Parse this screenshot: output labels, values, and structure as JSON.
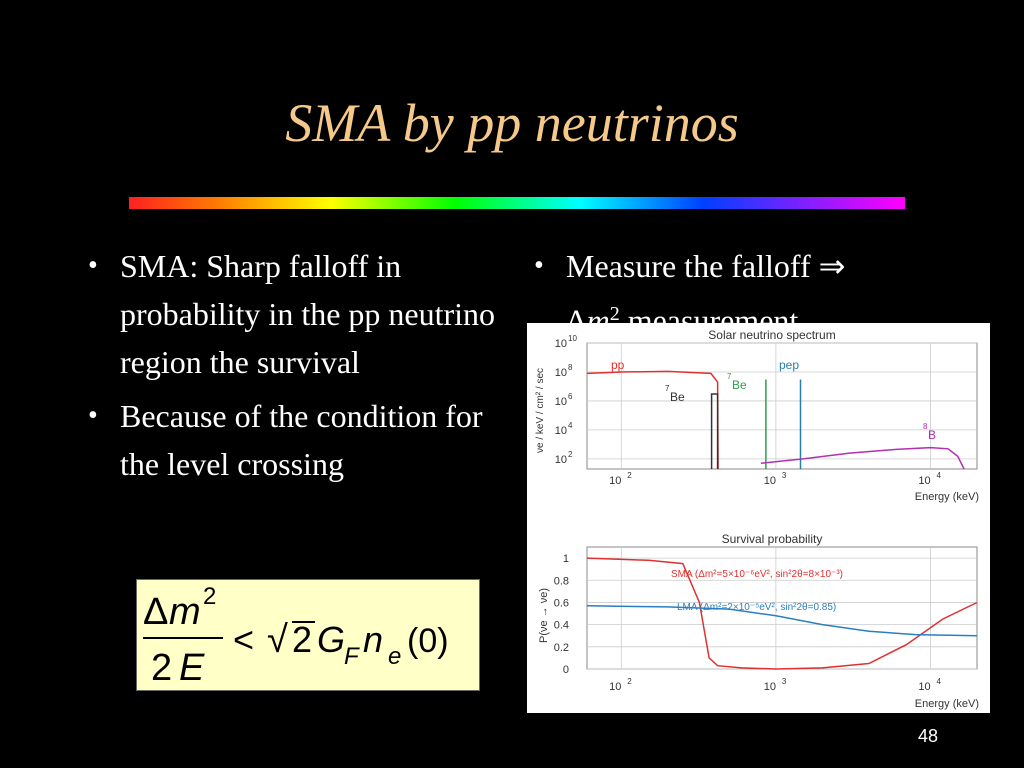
{
  "slide": {
    "title": "SMA by pp neutrinos",
    "page_number": "48",
    "left_bullets": [
      "SMA: Sharp falloff in probability in the pp neutrino region the survival",
      "Because of the condition for the level crossing"
    ],
    "right_bullet": {
      "line1": "Measure the falloff ⇒",
      "delta": "Δ",
      "m": "m",
      "sup": "2",
      "rest": " measurement"
    },
    "formula": {
      "num_delta": "Δ",
      "num_m": "m",
      "num_sup": "2",
      "den": "2",
      "den_E": "E",
      "lt": "<",
      "sqrt": "√",
      "two": "2",
      "G": "G",
      "F": "F",
      "n": "n",
      "e": "e",
      "arg": "(0)"
    }
  },
  "chart_data": [
    {
      "type": "line",
      "title": "Solar neutrino spectrum",
      "xlabel": "Energy (keV)",
      "ylabel": "νe / keV / cm² / sec",
      "xscale": "log",
      "yscale": "log",
      "xlim": [
        60,
        20000
      ],
      "ylim": [
        20,
        10000000000
      ],
      "xticks": [
        "10",
        "10",
        "10"
      ],
      "xtick_exp": [
        "2",
        "3",
        "4"
      ],
      "yticks": [
        "10",
        "10",
        "10",
        "10",
        "10"
      ],
      "ytick_exp": [
        "2",
        "4",
        "6",
        "8",
        "10"
      ],
      "series": [
        {
          "name": "pp",
          "color": "#e03030",
          "points": [
            [
              60,
              80000000
            ],
            [
              100,
              100000000
            ],
            [
              200,
              110000000
            ],
            [
              380,
              80000000
            ],
            [
              420,
              20000000
            ],
            [
              423,
              20
            ]
          ]
        },
        {
          "name": "7Be",
          "color": "#333333",
          "points": [
            [
              384,
              20
            ],
            [
              384,
              3000000
            ],
            [
              420,
              3000000
            ],
            [
              420,
              20
            ]
          ]
        },
        {
          "name": "7Be",
          "color": "#2e9e4a",
          "points": [
            [
              862,
              20
            ],
            [
              862,
              30000000
            ]
          ]
        },
        {
          "name": "pep",
          "color": "#2a7fa8",
          "points": [
            [
              1442,
              20
            ],
            [
              1442,
              30000000
            ]
          ]
        },
        {
          "name": "8B",
          "color": "#b030b0",
          "points": [
            [
              800,
              50
            ],
            [
              1500,
              100
            ],
            [
              3000,
              250
            ],
            [
              6000,
              450
            ],
            [
              10000,
              600
            ],
            [
              13000,
              500
            ],
            [
              15000,
              150
            ],
            [
              16500,
              20
            ]
          ]
        }
      ]
    },
    {
      "type": "line",
      "title": "Survival probability",
      "xlabel": "Energy (keV)",
      "ylabel": "P(νe → νe)",
      "xscale": "log",
      "xlim": [
        60,
        20000
      ],
      "ylim": [
        0,
        1.1
      ],
      "xticks": [
        "10",
        "10",
        "10"
      ],
      "xtick_exp": [
        "2",
        "3",
        "4"
      ],
      "yticks": [
        "0",
        "0.2",
        "0.4",
        "0.6",
        "0.8",
        "1"
      ],
      "series": [
        {
          "name": "SMA (Δm²=5×10⁻⁶eV², sin²2θ=8×10⁻³)",
          "color": "#e03030",
          "points": [
            [
              60,
              1.0
            ],
            [
              150,
              0.98
            ],
            [
              250,
              0.95
            ],
            [
              320,
              0.6
            ],
            [
              370,
              0.1
            ],
            [
              420,
              0.03
            ],
            [
              600,
              0.01
            ],
            [
              1000,
              0.0
            ],
            [
              2000,
              0.01
            ],
            [
              4000,
              0.05
            ],
            [
              7000,
              0.22
            ],
            [
              12000,
              0.45
            ],
            [
              20000,
              0.6
            ]
          ]
        },
        {
          "name": "LMA (Δm²=2×10⁻⁵eV², sin²2θ=0.85)",
          "color": "#2a7fc0",
          "points": [
            [
              60,
              0.57
            ],
            [
              200,
              0.56
            ],
            [
              500,
              0.54
            ],
            [
              1000,
              0.48
            ],
            [
              2000,
              0.4
            ],
            [
              4000,
              0.34
            ],
            [
              8000,
              0.31
            ],
            [
              20000,
              0.3
            ]
          ]
        }
      ]
    }
  ],
  "plot_labels": {
    "top_title": "Solar neutrino spectrum",
    "bottom_title": "Survival probability",
    "xlabel": "Energy (keV)",
    "top_ylabel": "νe / keV / cm² / sec",
    "bottom_ylabel": "P(νe → νe)",
    "pp": "pp",
    "be7_a": "Be",
    "be7_b": "Be",
    "be7_sup": "7",
    "pep": "pep",
    "b8": "B",
    "b8_sup": "8",
    "sma": "SMA (Δm²=5×10⁻⁶eV², sin²2θ=8×10⁻³)",
    "lma": "LMA (Δm²=2×10⁻⁵eV², sin²2θ=0.85)"
  }
}
